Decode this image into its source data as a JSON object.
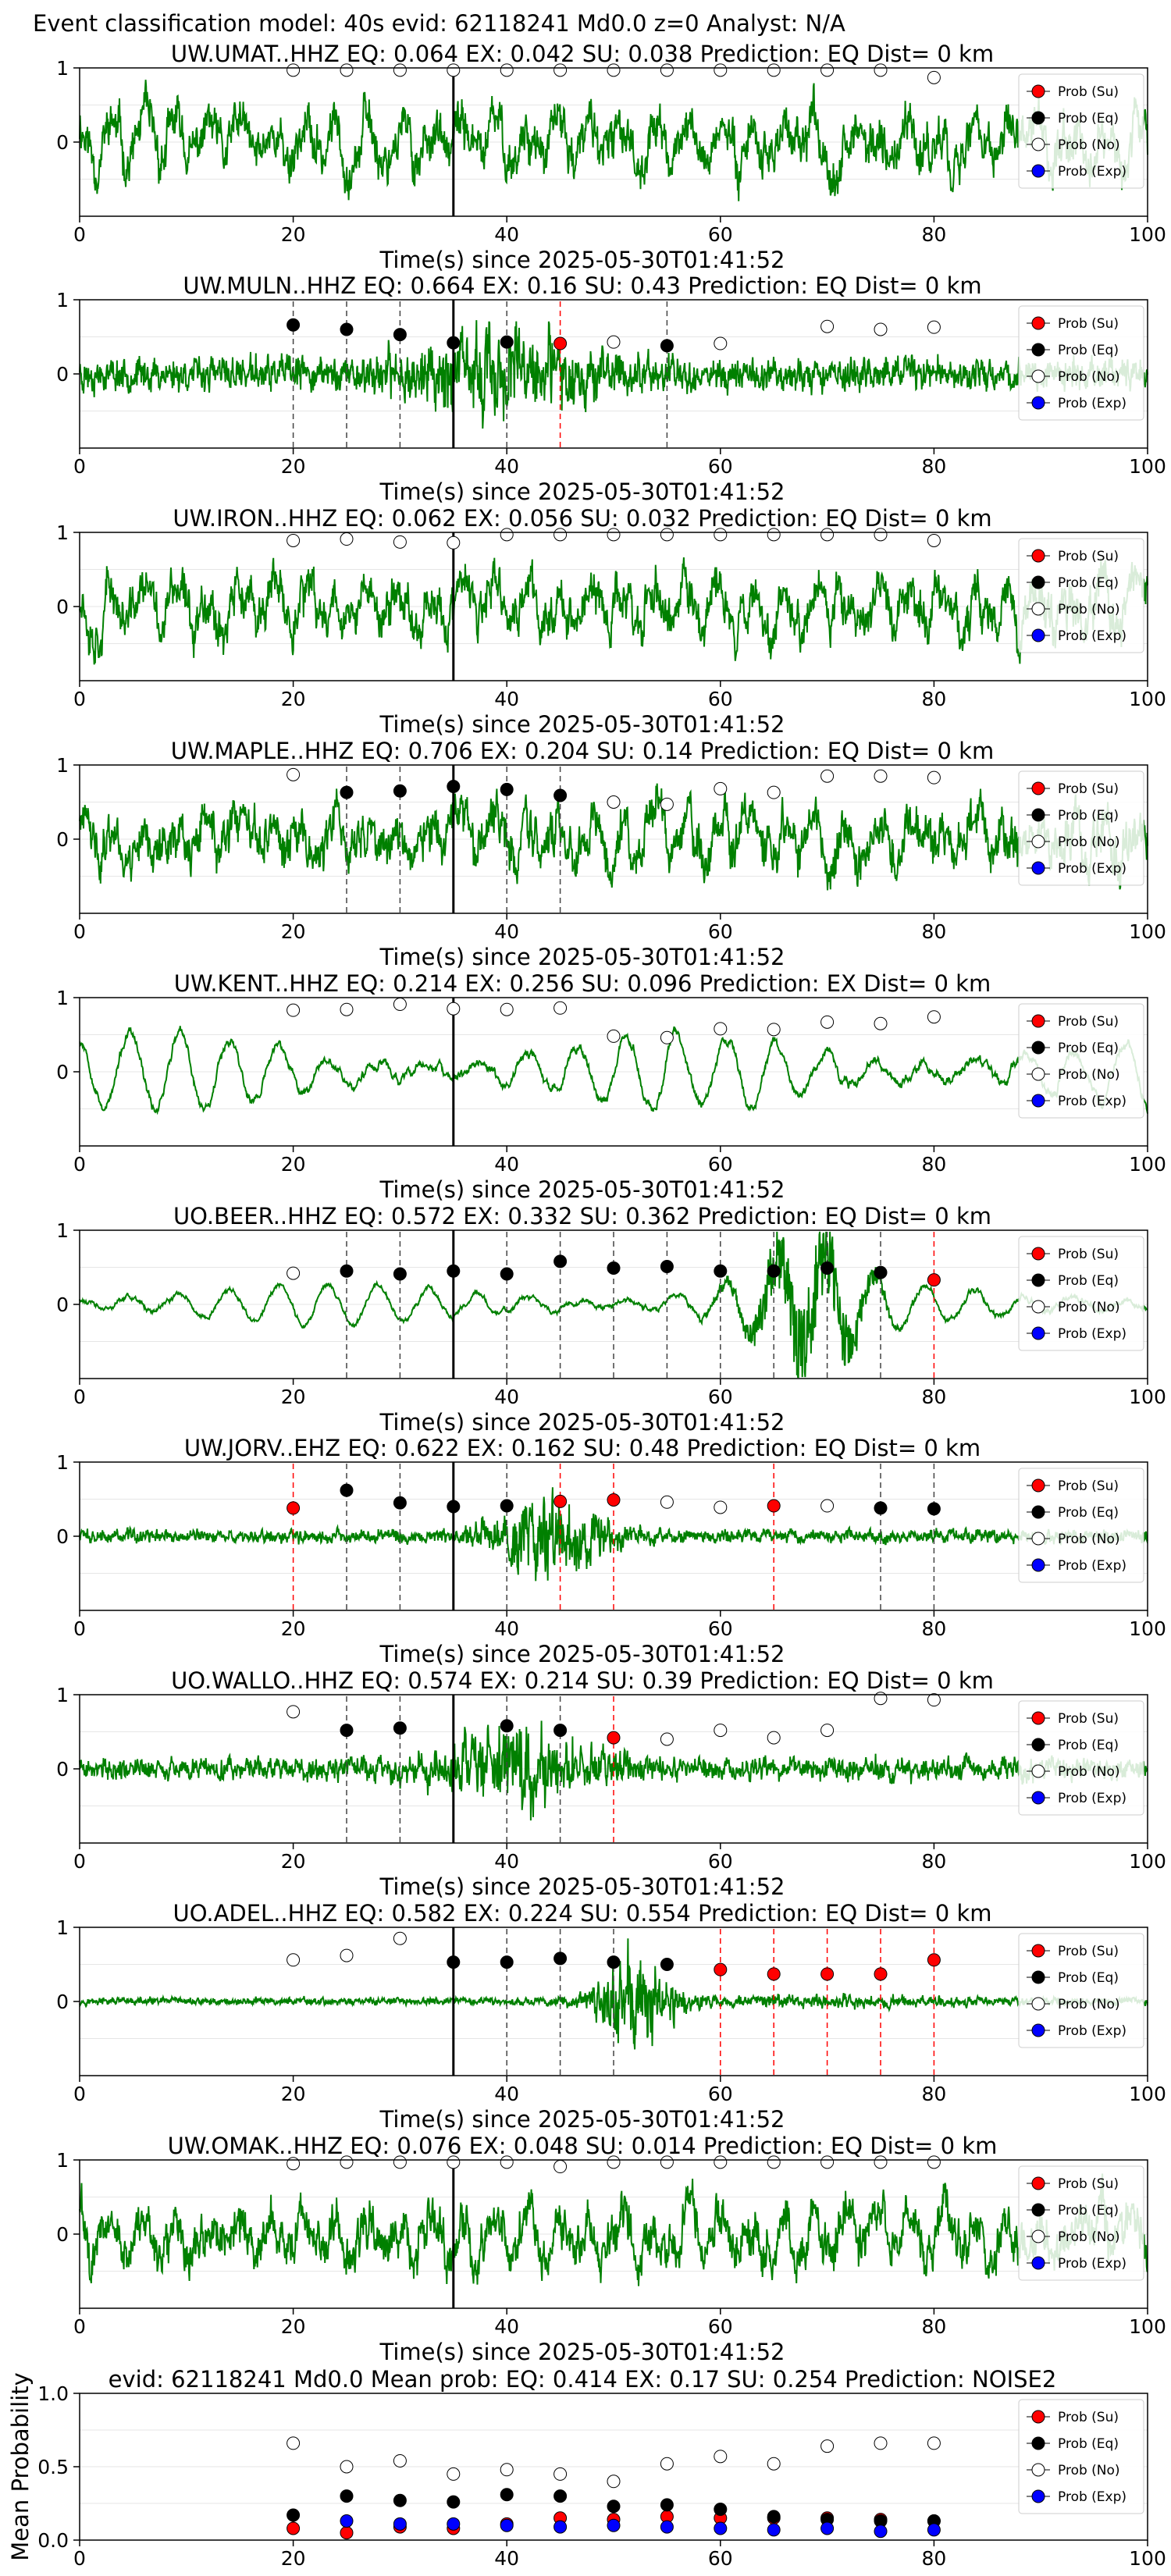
{
  "figure_title": "Event classification model: 40s evid: 62118241 Md0.0 z=0 Analyst: N/A",
  "colors": {
    "waveform": "#008000",
    "su": "#ff0000",
    "eq": "#000000",
    "no": "#ffffff",
    "exp": "#0000ff",
    "arrival": "#000000"
  },
  "legend_labels": [
    "Prob (Su)",
    "Prob (Eq)",
    "Prob (No)",
    "Prob (Exp)"
  ],
  "chart_data": [
    {
      "type": "line",
      "title": "UW.UMAT..HHZ   EQ: 0.064  EX: 0.042  SU: 0.038   Prediction: EQ    Dist= 0 km",
      "xlabel": "Time(s) since 2025-05-30T01:41:52",
      "ylabel": "",
      "xlim": [
        0,
        100
      ],
      "ylim": [
        -1,
        1
      ],
      "xticks": [
        "0",
        "20",
        "40",
        "60",
        "80",
        "100"
      ],
      "yticks": [
        "0",
        "1"
      ],
      "arrival_time": 35,
      "legend": "right",
      "waveform": {
        "style": "mixed",
        "seed": 11
      },
      "x": [
        20,
        25,
        30,
        35,
        40,
        45,
        50,
        55,
        60,
        65,
        70,
        75,
        80
      ],
      "series": [
        {
          "name": "Prob (No)",
          "values": [
            0.97,
            0.97,
            0.97,
            0.97,
            0.97,
            0.97,
            0.97,
            0.97,
            0.97,
            0.97,
            0.97,
            0.97,
            0.87
          ]
        }
      ],
      "picks": []
    },
    {
      "type": "line",
      "title": "UW.MULN..HHZ   EQ: 0.664  EX: 0.16  SU: 0.43   Prediction: EQ    Dist= 0 km",
      "xlabel": "Time(s) since 2025-05-30T01:41:52",
      "ylabel": "",
      "xlim": [
        0,
        100
      ],
      "ylim": [
        -1,
        1
      ],
      "xticks": [
        "0",
        "20",
        "40",
        "60",
        "80",
        "100"
      ],
      "yticks": [
        "0",
        "1"
      ],
      "arrival_time": 35,
      "legend": "right",
      "waveform": {
        "style": "noisy",
        "seed": 23
      },
      "x": [
        20,
        25,
        30,
        35,
        40,
        45,
        50,
        55,
        60,
        70,
        75,
        80
      ],
      "series": [
        {
          "name": "Prob (Eq)",
          "values": [
            0.66,
            0.6,
            0.53,
            0.42,
            0.43,
            null,
            null,
            0.38,
            null,
            null,
            null,
            null
          ]
        },
        {
          "name": "Prob (Su)",
          "values": [
            null,
            null,
            null,
            null,
            null,
            0.41,
            null,
            null,
            null,
            null,
            null,
            null
          ]
        },
        {
          "name": "Prob (No)",
          "values": [
            null,
            null,
            null,
            null,
            null,
            null,
            0.43,
            null,
            0.41,
            0.64,
            0.6,
            0.63
          ]
        }
      ],
      "picks": [
        {
          "t": 20,
          "color": "eq"
        },
        {
          "t": 25,
          "color": "eq"
        },
        {
          "t": 30,
          "color": "eq"
        },
        {
          "t": 40,
          "color": "eq"
        },
        {
          "t": 45,
          "color": "su"
        },
        {
          "t": 55,
          "color": "eq"
        }
      ]
    },
    {
      "type": "line",
      "title": "UW.IRON..HHZ   EQ: 0.062  EX: 0.056  SU: 0.032   Prediction: EQ    Dist= 0 km",
      "xlabel": "Time(s) since 2025-05-30T01:41:52",
      "ylabel": "",
      "xlim": [
        0,
        100
      ],
      "ylim": [
        -1,
        1
      ],
      "xticks": [
        "0",
        "20",
        "40",
        "60",
        "80",
        "100"
      ],
      "yticks": [
        "0",
        "1"
      ],
      "arrival_time": 35,
      "legend": "right",
      "waveform": {
        "style": "mixed",
        "seed": 37
      },
      "x": [
        20,
        25,
        30,
        35,
        40,
        45,
        50,
        55,
        60,
        65,
        70,
        75,
        80
      ],
      "series": [
        {
          "name": "Prob (No)",
          "values": [
            0.89,
            0.91,
            0.87,
            0.86,
            0.97,
            0.97,
            0.97,
            0.97,
            0.97,
            0.97,
            0.97,
            0.97,
            0.89
          ]
        }
      ],
      "picks": []
    },
    {
      "type": "line",
      "title": "UW.MAPLE..HHZ   EQ: 0.706  EX: 0.204  SU: 0.14   Prediction: EQ    Dist= 0 km",
      "xlabel": "Time(s) since 2025-05-30T01:41:52",
      "ylabel": "",
      "xlim": [
        0,
        100
      ],
      "ylim": [
        -1,
        1
      ],
      "xticks": [
        "0",
        "20",
        "40",
        "60",
        "80",
        "100"
      ],
      "yticks": [
        "0",
        "1"
      ],
      "arrival_time": 35,
      "legend": "right",
      "waveform": {
        "style": "mixed",
        "seed": 41
      },
      "x": [
        20,
        25,
        30,
        35,
        40,
        45,
        50,
        55,
        60,
        65,
        70,
        75,
        80
      ],
      "series": [
        {
          "name": "Prob (Eq)",
          "values": [
            null,
            0.63,
            0.65,
            0.71,
            0.67,
            0.59,
            null,
            null,
            null,
            null,
            null,
            null,
            null
          ]
        },
        {
          "name": "Prob (No)",
          "values": [
            0.87,
            null,
            null,
            null,
            null,
            null,
            0.5,
            0.47,
            0.68,
            0.63,
            0.85,
            0.85,
            0.83
          ]
        }
      ],
      "picks": [
        {
          "t": 25,
          "color": "eq"
        },
        {
          "t": 30,
          "color": "eq"
        },
        {
          "t": 40,
          "color": "eq"
        },
        {
          "t": 45,
          "color": "eq"
        }
      ]
    },
    {
      "type": "line",
      "title": "UW.KENT..HHZ   EQ: 0.214  EX: 0.256  SU: 0.096   Prediction: EX    Dist= 0 km",
      "xlabel": "Time(s) since 2025-05-30T01:41:52",
      "ylabel": "",
      "xlim": [
        0,
        100
      ],
      "ylim": [
        -1,
        1
      ],
      "xticks": [
        "0",
        "20",
        "40",
        "60",
        "80",
        "100"
      ],
      "yticks": [
        "0",
        "1"
      ],
      "arrival_time": 35,
      "legend": "right",
      "waveform": {
        "style": "smooth",
        "seed": 53
      },
      "x": [
        20,
        25,
        30,
        35,
        40,
        45,
        50,
        55,
        60,
        65,
        70,
        75,
        80
      ],
      "series": [
        {
          "name": "Prob (No)",
          "values": [
            0.83,
            0.84,
            0.91,
            0.85,
            0.84,
            0.86,
            0.48,
            0.46,
            0.58,
            0.57,
            0.67,
            0.65,
            0.74
          ]
        }
      ],
      "picks": []
    },
    {
      "type": "line",
      "title": "UO.BEER..HHZ   EQ: 0.572  EX: 0.332  SU: 0.362   Prediction: EQ    Dist= 0 km",
      "xlabel": "Time(s) since 2025-05-30T01:41:52",
      "ylabel": "",
      "xlim": [
        0,
        100
      ],
      "ylim": [
        -1,
        1
      ],
      "xticks": [
        "0",
        "20",
        "40",
        "60",
        "80",
        "100"
      ],
      "yticks": [
        "0",
        "1"
      ],
      "arrival_time": 35,
      "legend": "right",
      "waveform": {
        "style": "beer",
        "seed": 61
      },
      "x": [
        20,
        25,
        30,
        35,
        40,
        45,
        50,
        55,
        60,
        65,
        70,
        75,
        80
      ],
      "series": [
        {
          "name": "Prob (Eq)",
          "values": [
            null,
            0.45,
            0.41,
            0.45,
            0.41,
            0.58,
            0.49,
            0.51,
            0.45,
            0.45,
            0.49,
            0.43,
            null
          ]
        },
        {
          "name": "Prob (Su)",
          "values": [
            null,
            null,
            null,
            null,
            null,
            null,
            null,
            null,
            null,
            null,
            null,
            null,
            0.33
          ]
        },
        {
          "name": "Prob (No)",
          "values": [
            0.42,
            null,
            null,
            null,
            null,
            null,
            null,
            null,
            null,
            null,
            null,
            null,
            null
          ]
        }
      ],
      "picks": [
        {
          "t": 25,
          "color": "eq"
        },
        {
          "t": 30,
          "color": "eq"
        },
        {
          "t": 40,
          "color": "eq"
        },
        {
          "t": 45,
          "color": "eq"
        },
        {
          "t": 50,
          "color": "eq"
        },
        {
          "t": 55,
          "color": "eq"
        },
        {
          "t": 60,
          "color": "eq"
        },
        {
          "t": 65,
          "color": "eq"
        },
        {
          "t": 70,
          "color": "eq"
        },
        {
          "t": 75,
          "color": "eq"
        },
        {
          "t": 80,
          "color": "su"
        }
      ]
    },
    {
      "type": "line",
      "title": "UW.JORV..EHZ   EQ: 0.622  EX: 0.162  SU: 0.48   Prediction: EQ    Dist= 0 km",
      "xlabel": "Time(s) since 2025-05-30T01:41:52",
      "ylabel": "",
      "xlim": [
        0,
        100
      ],
      "ylim": [
        -1,
        1
      ],
      "xticks": [
        "0",
        "20",
        "40",
        "60",
        "80",
        "100"
      ],
      "yticks": [
        "0",
        "1"
      ],
      "arrival_time": 35,
      "legend": "right",
      "waveform": {
        "style": "quiet",
        "seed": 73
      },
      "x": [
        20,
        25,
        30,
        35,
        40,
        45,
        50,
        55,
        60,
        65,
        70,
        75,
        80
      ],
      "series": [
        {
          "name": "Prob (Su)",
          "values": [
            0.38,
            null,
            null,
            null,
            null,
            0.47,
            0.49,
            null,
            null,
            0.41,
            null,
            null,
            null
          ]
        },
        {
          "name": "Prob (Eq)",
          "values": [
            null,
            0.62,
            0.45,
            0.4,
            0.41,
            null,
            null,
            null,
            null,
            null,
            null,
            0.38,
            0.37
          ]
        },
        {
          "name": "Prob (No)",
          "values": [
            null,
            null,
            null,
            null,
            null,
            null,
            null,
            0.46,
            0.39,
            null,
            0.41,
            null,
            null
          ]
        }
      ],
      "picks": [
        {
          "t": 20,
          "color": "su"
        },
        {
          "t": 25,
          "color": "eq"
        },
        {
          "t": 30,
          "color": "eq"
        },
        {
          "t": 40,
          "color": "eq"
        },
        {
          "t": 45,
          "color": "su"
        },
        {
          "t": 50,
          "color": "su"
        },
        {
          "t": 65,
          "color": "su"
        },
        {
          "t": 75,
          "color": "eq"
        },
        {
          "t": 80,
          "color": "eq"
        }
      ]
    },
    {
      "type": "line",
      "title": "UO.WALLO..HHZ   EQ: 0.574  EX: 0.214  SU: 0.39   Prediction: EQ    Dist= 0 km",
      "xlabel": "Time(s) since 2025-05-30T01:41:52",
      "ylabel": "",
      "xlim": [
        0,
        100
      ],
      "ylim": [
        -1,
        1
      ],
      "xticks": [
        "0",
        "20",
        "40",
        "60",
        "80",
        "100"
      ],
      "yticks": [
        "0",
        "1"
      ],
      "arrival_time": 35,
      "legend": "right",
      "waveform": {
        "style": "noisy2",
        "seed": 89
      },
      "x": [
        20,
        25,
        30,
        40,
        45,
        50,
        55,
        60,
        65,
        70,
        75,
        80
      ],
      "series": [
        {
          "name": "Prob (Eq)",
          "values": [
            null,
            0.52,
            0.55,
            0.58,
            0.52,
            null,
            null,
            null,
            null,
            null,
            null,
            null
          ]
        },
        {
          "name": "Prob (Su)",
          "values": [
            null,
            null,
            null,
            null,
            null,
            0.42,
            null,
            null,
            null,
            null,
            null,
            null
          ]
        },
        {
          "name": "Prob (No)",
          "values": [
            0.77,
            null,
            null,
            null,
            null,
            null,
            0.4,
            0.52,
            0.42,
            0.52,
            0.95,
            0.93
          ]
        }
      ],
      "picks": [
        {
          "t": 25,
          "color": "eq"
        },
        {
          "t": 30,
          "color": "eq"
        },
        {
          "t": 40,
          "color": "eq"
        },
        {
          "t": 45,
          "color": "eq"
        },
        {
          "t": 50,
          "color": "su"
        }
      ]
    },
    {
      "type": "line",
      "title": "UO.ADEL..HHZ   EQ: 0.582  EX: 0.224  SU: 0.554   Prediction: EQ    Dist= 0 km",
      "xlabel": "Time(s) since 2025-05-30T01:41:52",
      "ylabel": "",
      "xlim": [
        0,
        100
      ],
      "ylim": [
        -1,
        1
      ],
      "xticks": [
        "0",
        "20",
        "40",
        "60",
        "80",
        "100"
      ],
      "yticks": [
        "0",
        "1"
      ],
      "arrival_time": 35,
      "legend": "right",
      "waveform": {
        "style": "adel",
        "seed": 97
      },
      "x": [
        20,
        25,
        30,
        35,
        40,
        45,
        50,
        55,
        60,
        65,
        70,
        75,
        80
      ],
      "series": [
        {
          "name": "Prob (No)",
          "values": [
            0.56,
            0.62,
            0.85,
            null,
            null,
            null,
            null,
            null,
            null,
            null,
            null,
            null,
            null
          ]
        },
        {
          "name": "Prob (Eq)",
          "values": [
            null,
            null,
            null,
            0.53,
            0.53,
            0.58,
            0.53,
            0.5,
            null,
            null,
            null,
            null,
            null
          ]
        },
        {
          "name": "Prob (Su)",
          "values": [
            null,
            null,
            null,
            null,
            null,
            null,
            null,
            null,
            0.43,
            0.37,
            0.37,
            0.37,
            0.56
          ]
        }
      ],
      "picks": [
        {
          "t": 40,
          "color": "eq"
        },
        {
          "t": 45,
          "color": "eq"
        },
        {
          "t": 50,
          "color": "eq"
        },
        {
          "t": 60,
          "color": "su"
        },
        {
          "t": 65,
          "color": "su"
        },
        {
          "t": 70,
          "color": "su"
        },
        {
          "t": 75,
          "color": "su"
        },
        {
          "t": 80,
          "color": "su"
        }
      ]
    },
    {
      "type": "line",
      "title": "UW.OMAK..HHZ   EQ: 0.076  EX: 0.048  SU: 0.014   Prediction: EQ    Dist= 0 km",
      "xlabel": "Time(s) since 2025-05-30T01:41:52",
      "ylabel": "",
      "xlim": [
        0,
        100
      ],
      "ylim": [
        -1,
        1
      ],
      "xticks": [
        "0",
        "20",
        "40",
        "60",
        "80",
        "100"
      ],
      "yticks": [
        "0",
        "1"
      ],
      "arrival_time": 35,
      "legend": "right",
      "waveform": {
        "style": "mixed",
        "seed": 101
      },
      "x": [
        20,
        25,
        30,
        35,
        40,
        45,
        50,
        55,
        60,
        65,
        70,
        75,
        80
      ],
      "series": [
        {
          "name": "Prob (No)",
          "values": [
            0.95,
            0.97,
            0.97,
            0.97,
            0.97,
            0.91,
            0.97,
            0.97,
            0.97,
            0.97,
            0.97,
            0.97,
            0.97
          ]
        }
      ],
      "picks": []
    },
    {
      "type": "scatter",
      "title": "evid: 62118241  Md0.0   Mean prob:   EQ: 0.414  EX: 0.17  SU: 0.254   Prediction: NOISE2",
      "xlabel": "",
      "ylabel": "Mean Probability",
      "xlim": [
        0,
        100
      ],
      "ylim": [
        0,
        1
      ],
      "xticks": [
        "0",
        "20",
        "40",
        "60",
        "80",
        "100"
      ],
      "yticks": [
        "0.0",
        "0.5",
        "1.0"
      ],
      "legend": "right",
      "x": [
        20,
        25,
        30,
        35,
        40,
        45,
        50,
        55,
        60,
        65,
        70,
        75,
        80
      ],
      "series": [
        {
          "name": "Prob (Su)",
          "values": [
            0.08,
            0.05,
            0.09,
            0.08,
            0.11,
            0.15,
            0.14,
            0.16,
            0.15,
            0.15,
            0.15,
            0.14,
            0.13
          ]
        },
        {
          "name": "Prob (Eq)",
          "values": [
            0.17,
            0.3,
            0.27,
            0.26,
            0.31,
            0.3,
            0.23,
            0.24,
            0.21,
            0.16,
            0.14,
            0.13,
            0.13
          ]
        },
        {
          "name": "Prob (No)",
          "values": [
            0.66,
            0.5,
            0.54,
            0.45,
            0.48,
            0.45,
            0.4,
            0.52,
            0.57,
            0.52,
            0.64,
            0.66,
            0.66
          ]
        },
        {
          "name": "Prob (Exp)",
          "values": [
            null,
            0.13,
            0.11,
            0.11,
            0.1,
            0.09,
            0.1,
            0.09,
            0.08,
            0.07,
            0.08,
            0.06,
            0.07
          ]
        }
      ]
    }
  ]
}
